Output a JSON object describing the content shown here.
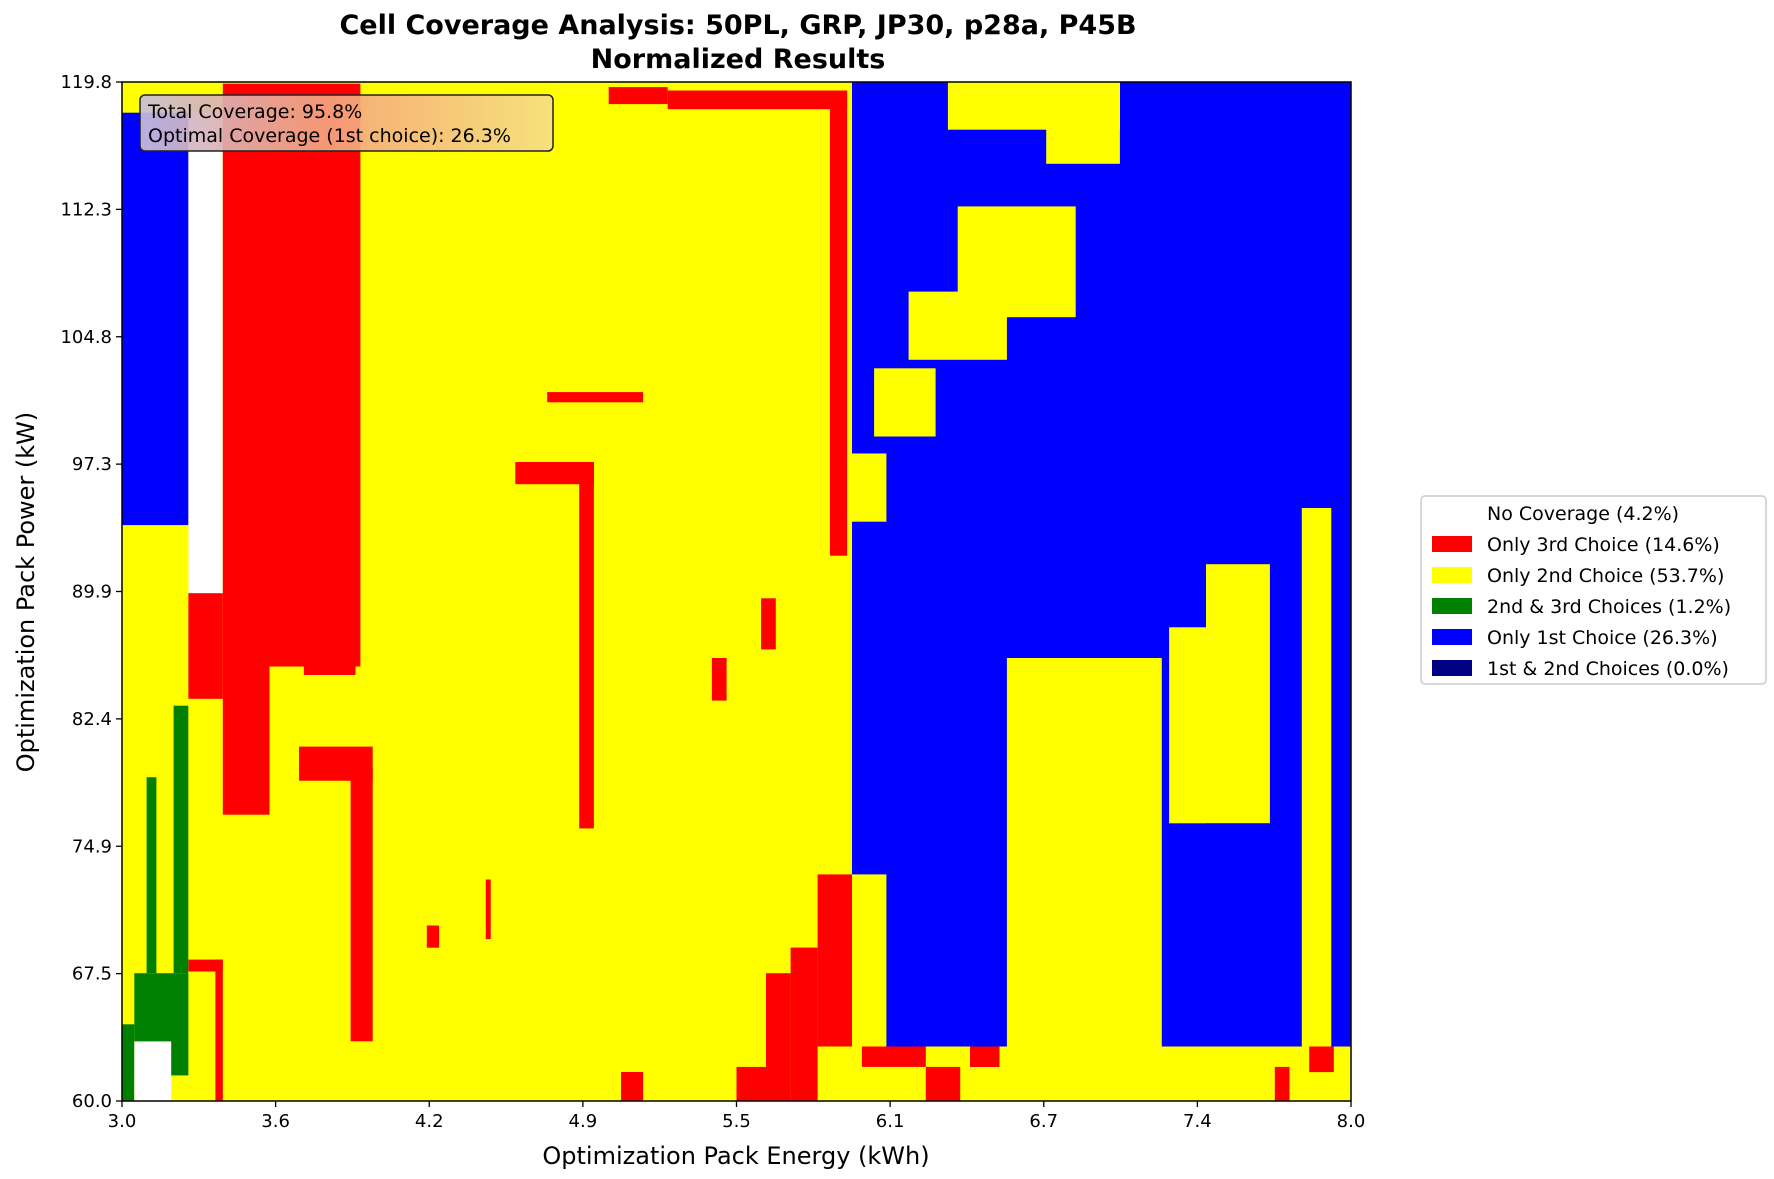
{
  "chart_data": {
    "type": "heatmap",
    "title": "Cell Coverage Analysis: 50PL, GRP, JP30, p28a, P45B",
    "subtitle": "Normalized Results",
    "xlabel": "Optimization Pack Energy (kWh)",
    "ylabel": "Optimization Pack Power (kW)",
    "xlim": [
      3.0,
      8.0
    ],
    "ylim": [
      60.0,
      119.8
    ],
    "x_ticks": [
      "3.0",
      "3.6",
      "4.2",
      "4.9",
      "5.5",
      "6.1",
      "6.7",
      "7.4",
      "8.0"
    ],
    "y_ticks": [
      "60.0",
      "67.5",
      "74.9",
      "82.4",
      "89.9",
      "97.3",
      "104.8",
      "112.3",
      "119.8"
    ],
    "annotation": [
      "Total Coverage: 95.8%",
      "Optimal Coverage (1st choice): 26.3%"
    ],
    "legend_position": "right",
    "legend": [
      {
        "label": "No Coverage (4.2%)",
        "color": "#ffffff"
      },
      {
        "label": "Only 3rd Choice (14.6%)",
        "color": "#ff0000"
      },
      {
        "label": "Only 2nd Choice (53.7%)",
        "color": "#ffff00"
      },
      {
        "label": "2nd & 3rd Choices (1.2%)",
        "color": "#008000"
      },
      {
        "label": "Only 1st Choice (26.3%)",
        "color": "#0000ff"
      },
      {
        "label": "1st & 2nd Choices (0.0%)",
        "color": "#000080"
      }
    ],
    "regions": [
      {
        "category": "Only 2nd Choice",
        "color": "#ffff00",
        "x": [
          3.0,
          8.0
        ],
        "y": [
          60.0,
          119.8
        ]
      },
      {
        "category": "Only 1st Choice",
        "color": "#0000ff",
        "x": [
          3.0,
          3.27
        ],
        "y": [
          93.8,
          118.0
        ]
      },
      {
        "category": "No Coverage",
        "color": "#ffffff",
        "x": [
          3.27,
          3.41
        ],
        "y": [
          89.8,
          118.0
        ]
      },
      {
        "category": "Only 3rd Choice",
        "color": "#ff0000",
        "x": [
          3.41,
          3.97
        ],
        "y": [
          85.5,
          119.7
        ]
      },
      {
        "category": "Only 3rd Choice",
        "color": "#ff0000",
        "x": [
          3.27,
          3.41
        ],
        "y": [
          83.6,
          89.8
        ]
      },
      {
        "category": "Only 3rd Choice",
        "color": "#ff0000",
        "x": [
          3.41,
          3.6
        ],
        "y": [
          76.8,
          85.5
        ]
      },
      {
        "category": "Only 3rd Choice",
        "color": "#ff0000",
        "x": [
          3.74,
          3.95
        ],
        "y": [
          85.0,
          89.0
        ]
      },
      {
        "category": "Only 3rd Choice",
        "color": "#ff0000",
        "x": [
          3.72,
          4.02
        ],
        "y": [
          78.8,
          80.8
        ]
      },
      {
        "category": "Only 3rd Choice",
        "color": "#ff0000",
        "x": [
          3.93,
          4.02
        ],
        "y": [
          63.5,
          79.5
        ]
      },
      {
        "category": "Only 3rd Choice",
        "color": "#ff0000",
        "x": [
          3.27,
          3.41
        ],
        "y": [
          67.6,
          68.3
        ]
      },
      {
        "category": "Only 3rd Choice",
        "color": "#ff0000",
        "x": [
          3.38,
          3.41
        ],
        "y": [
          60.0,
          68.3
        ]
      },
      {
        "category": "Only 3rd Choice",
        "color": "#ff0000",
        "x": [
          4.6,
          4.92
        ],
        "y": [
          96.2,
          97.5
        ]
      },
      {
        "category": "Only 3rd Choice",
        "color": "#ff0000",
        "x": [
          4.86,
          4.92
        ],
        "y": [
          76.0,
          97.5
        ]
      },
      {
        "category": "Only 3rd Choice",
        "color": "#ff0000",
        "x": [
          4.73,
          5.12
        ],
        "y": [
          101.0,
          101.6
        ]
      },
      {
        "category": "Only 3rd Choice",
        "color": "#ff0000",
        "x": [
          4.98,
          5.22
        ],
        "y": [
          118.5,
          119.5
        ]
      },
      {
        "category": "Only 3rd Choice",
        "color": "#ff0000",
        "x": [
          5.22,
          5.95
        ],
        "y": [
          118.2,
          119.3
        ]
      },
      {
        "category": "Only 3rd Choice",
        "color": "#ff0000",
        "x": [
          5.88,
          5.95
        ],
        "y": [
          92.0,
          119.3
        ]
      },
      {
        "category": "Only 3rd Choice",
        "color": "#ff0000",
        "x": [
          5.6,
          5.66
        ],
        "y": [
          86.5,
          89.5
        ]
      },
      {
        "category": "Only 3rd Choice",
        "color": "#ff0000",
        "x": [
          5.4,
          5.46
        ],
        "y": [
          83.5,
          86.0
        ]
      },
      {
        "category": "Only 3rd Choice",
        "color": "#ff0000",
        "x": [
          4.24,
          4.29
        ],
        "y": [
          69.0,
          70.3
        ]
      },
      {
        "category": "Only 3rd Choice",
        "color": "#ff0000",
        "x": [
          4.48,
          4.5
        ],
        "y": [
          69.5,
          73.0
        ]
      },
      {
        "category": "Only 3rd Choice",
        "color": "#ff0000",
        "x": [
          5.03,
          5.12
        ],
        "y": [
          60.0,
          61.7
        ]
      },
      {
        "category": "Only 3rd Choice",
        "color": "#ff0000",
        "x": [
          5.5,
          5.62
        ],
        "y": [
          60.0,
          62.0
        ]
      },
      {
        "category": "Only 3rd Choice",
        "color": "#ff0000",
        "x": [
          5.62,
          5.72
        ],
        "y": [
          60.0,
          67.5
        ]
      },
      {
        "category": "Only 3rd Choice",
        "color": "#ff0000",
        "x": [
          5.72,
          5.83
        ],
        "y": [
          60.0,
          69.0
        ]
      },
      {
        "category": "Only 3rd Choice",
        "color": "#ff0000",
        "x": [
          5.83,
          6.0
        ],
        "y": [
          63.2,
          73.3
        ]
      },
      {
        "category": "Only 3rd Choice",
        "color": "#ff0000",
        "x": [
          6.01,
          6.27
        ],
        "y": [
          62.0,
          63.8
        ]
      },
      {
        "category": "Only 3rd Choice",
        "color": "#ff0000",
        "x": [
          6.27,
          6.41
        ],
        "y": [
          60.0,
          62.0
        ]
      },
      {
        "category": "Only 3rd Choice",
        "color": "#ff0000",
        "x": [
          6.45,
          6.57
        ],
        "y": [
          62.0,
          68.3
        ]
      },
      {
        "category": "Only 3rd Choice",
        "color": "#ff0000",
        "x": [
          6.57,
          7.22
        ],
        "y": [
          63.2,
          73.3
        ]
      },
      {
        "category": "Only 3rd Choice",
        "color": "#ff0000",
        "x": [
          7.26,
          7.67
        ],
        "y": [
          63.2,
          76.3
        ]
      },
      {
        "category": "Only 3rd Choice",
        "color": "#ff0000",
        "x": [
          7.69,
          7.75
        ],
        "y": [
          60.0,
          62.0
        ]
      },
      {
        "category": "Only 3rd Choice",
        "color": "#ff0000",
        "x": [
          7.83,
          7.93
        ],
        "y": [
          61.7,
          63.2
        ]
      },
      {
        "category": "2nd & 3rd Choices",
        "color": "#008000",
        "x": [
          3.0,
          3.05
        ],
        "y": [
          60.0,
          64.5
        ]
      },
      {
        "category": "2nd & 3rd Choices",
        "color": "#008000",
        "x": [
          3.05,
          3.27
        ],
        "y": [
          61.5,
          67.5
        ]
      },
      {
        "category": "2nd & 3rd Choices",
        "color": "#008000",
        "x": [
          3.1,
          3.14
        ],
        "y": [
          67.5,
          79.0
        ]
      },
      {
        "category": "2nd & 3rd Choices",
        "color": "#008000",
        "x": [
          3.21,
          3.27
        ],
        "y": [
          67.5,
          83.2
        ]
      },
      {
        "category": "No Coverage",
        "color": "#ffffff",
        "x": [
          3.05,
          3.2
        ],
        "y": [
          60.0,
          63.5
        ]
      },
      {
        "category": "Only 1st Choice",
        "color": "#0000ff",
        "x": [
          5.97,
          8.0
        ],
        "y": [
          63.2,
          119.8
        ]
      },
      {
        "category": "Only 2nd Choice",
        "color": "#ffff00",
        "x": [
          5.97,
          6.11
        ],
        "y": [
          94.0,
          98.0
        ]
      },
      {
        "category": "Only 2nd Choice",
        "color": "#ffff00",
        "x": [
          6.06,
          6.31
        ],
        "y": [
          99.0,
          103.0
        ]
      },
      {
        "category": "Only 2nd Choice",
        "color": "#ffff00",
        "x": [
          6.2,
          6.6
        ],
        "y": [
          103.5,
          107.5
        ]
      },
      {
        "category": "Only 2nd Choice",
        "color": "#ffff00",
        "x": [
          6.4,
          6.88
        ],
        "y": [
          106.0,
          112.5
        ]
      },
      {
        "category": "Only 2nd Choice",
        "color": "#ffff00",
        "x": [
          6.36,
          7.06
        ],
        "y": [
          117.0,
          119.8
        ]
      },
      {
        "category": "Only 2nd Choice",
        "color": "#ffff00",
        "x": [
          6.76,
          7.06
        ],
        "y": [
          115.0,
          119.0
        ]
      },
      {
        "category": "Only 2nd Choice",
        "color": "#ffff00",
        "x": [
          6.6,
          7.23
        ],
        "y": [
          63.2,
          86.0
        ]
      },
      {
        "category": "Only 2nd Choice",
        "color": "#ffff00",
        "x": [
          7.26,
          7.41
        ],
        "y": [
          76.3,
          87.8
        ]
      },
      {
        "category": "Only 2nd Choice",
        "color": "#ffff00",
        "x": [
          7.41,
          7.67
        ],
        "y": [
          76.3,
          91.5
        ]
      },
      {
        "category": "Only 2nd Choice",
        "color": "#ffff00",
        "x": [
          7.8,
          7.92
        ],
        "y": [
          63.2,
          94.8
        ]
      },
      {
        "category": "Only 2nd Choice",
        "color": "#ffff00",
        "x": [
          5.97,
          6.11
        ],
        "y": [
          63.2,
          73.3
        ]
      }
    ]
  }
}
